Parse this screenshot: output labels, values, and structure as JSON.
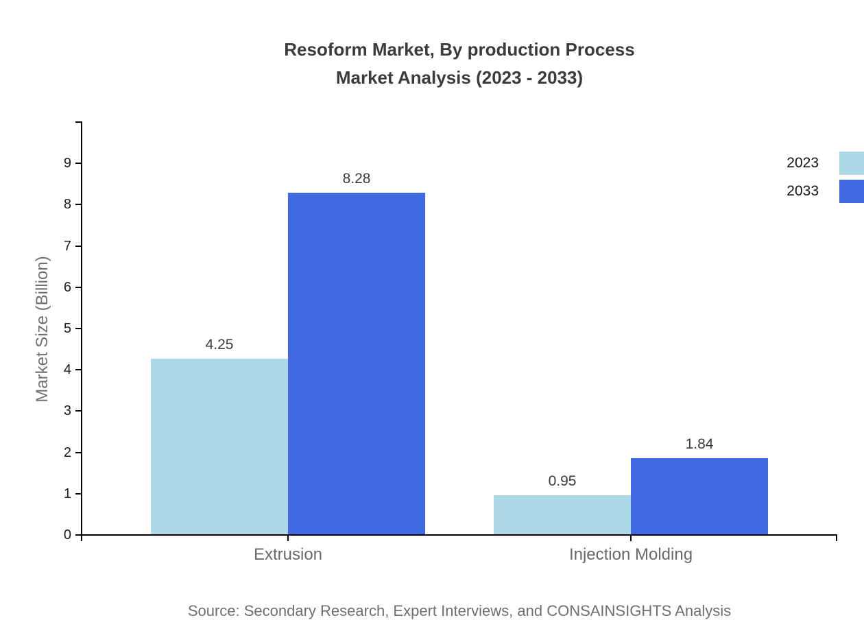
{
  "title": {
    "line1": "Resoform Market, By production Process",
    "line2": "Market Analysis (2023 - 2033)"
  },
  "chart_data": {
    "type": "bar",
    "title": "Resoform Market, By production Process Market Analysis (2023 - 2033)",
    "categories": [
      "Extrusion",
      "Injection Molding"
    ],
    "series": [
      {
        "name": "2023",
        "color": "#ADD8E6",
        "values": [
          4.25,
          0.95
        ]
      },
      {
        "name": "2033",
        "color": "#4169E1",
        "values": [
          8.28,
          1.84
        ]
      }
    ],
    "value_labels": [
      [
        "4.25",
        "0.95"
      ],
      [
        "8.28",
        "1.84"
      ]
    ],
    "xlabel": "",
    "ylabel": "Market Size (Billion)",
    "ylim": [
      0,
      10
    ],
    "yticks": [
      0,
      1,
      2,
      3,
      4,
      5,
      6,
      7,
      8,
      9
    ],
    "grid": false,
    "legend_position": "top-right",
    "source": "Source: Secondary Research, Expert Interviews, and CONSAINSIGHTS Analysis"
  },
  "colors": {
    "series_2023": "#ADD8E6",
    "series_2033": "#4169E1",
    "axis": "#000000",
    "title_text": "#3b3b3b",
    "muted_text": "#6e6e6e",
    "tick_text": "#1c1c1c"
  }
}
